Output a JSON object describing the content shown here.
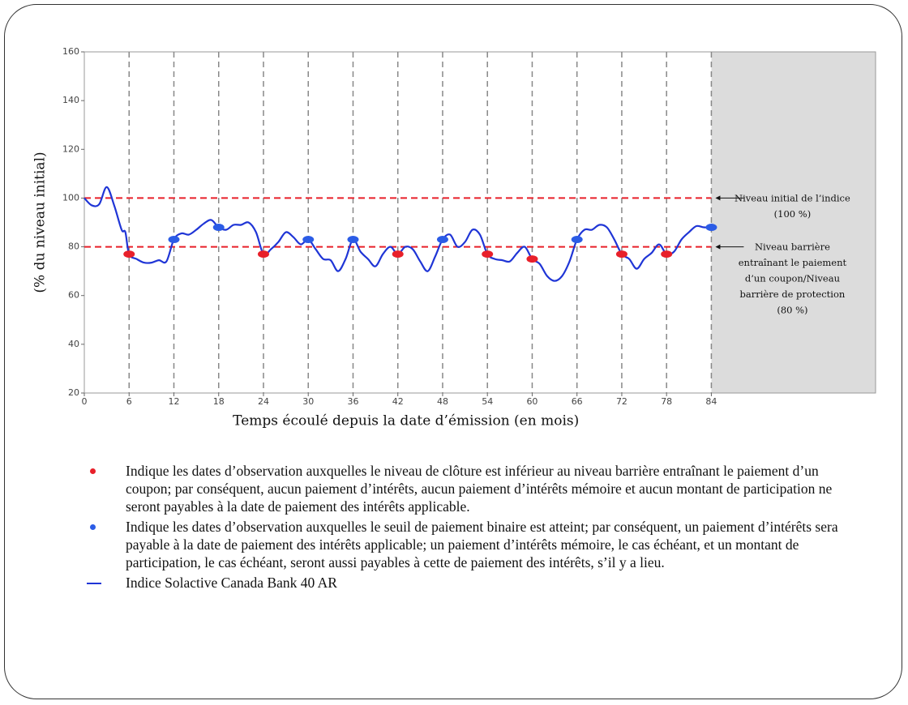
{
  "chart_data": {
    "type": "line",
    "xlabel": "Temps écoulé depuis la date d’émission (en mois)",
    "ylabel": "(% du niveau initial)",
    "xlim": [
      0,
      106
    ],
    "ylim": [
      20,
      160
    ],
    "xticks": [
      0,
      6,
      12,
      18,
      24,
      30,
      36,
      42,
      48,
      54,
      60,
      66,
      72,
      78,
      84
    ],
    "yticks": [
      20,
      40,
      60,
      80,
      100,
      120,
      140,
      160
    ],
    "observation_grid": true,
    "shaded_from": 84,
    "shade_color": "#dcdcdc",
    "x": [
      0,
      1,
      2,
      3,
      4,
      5,
      5.5,
      6,
      7,
      8,
      9,
      10,
      11,
      12,
      13,
      14,
      15,
      16,
      17,
      18,
      19,
      20,
      21,
      22,
      23,
      24,
      25,
      26,
      27,
      28,
      29,
      30,
      31,
      32,
      33,
      34,
      35,
      36,
      37,
      38,
      39,
      40,
      41,
      42,
      43,
      44,
      45,
      46,
      47,
      48,
      49,
      50,
      51,
      52,
      53,
      54,
      55,
      56,
      57,
      58,
      59,
      60,
      61,
      62,
      63,
      64,
      65,
      66,
      67,
      68,
      69,
      70,
      71,
      72,
      73,
      74,
      75,
      76,
      77,
      78,
      79,
      80,
      81,
      82,
      83,
      84
    ],
    "series": [
      {
        "name": "Indice Solactive Canada Bank 40 AR",
        "color": "#1f35d6",
        "values": [
          100,
          97,
          97.5,
          104.5,
          97,
          87,
          86,
          77,
          75,
          73.5,
          73.5,
          74.5,
          74,
          83,
          85.5,
          85,
          87,
          89.5,
          91,
          88,
          87,
          89,
          89,
          90,
          86,
          77,
          79,
          82,
          86,
          84,
          81,
          83,
          79,
          75,
          74.5,
          70,
          75,
          83,
          78,
          75,
          72,
          77,
          80,
          77,
          80,
          79,
          74,
          70,
          76,
          83,
          85,
          80,
          82,
          87,
          85,
          77,
          75,
          74.5,
          74,
          77.5,
          80,
          75,
          73,
          68,
          66,
          68,
          74,
          83,
          87,
          87,
          89,
          88,
          83,
          77,
          75,
          71,
          75,
          77.5,
          81,
          77,
          78,
          83,
          86,
          88.5,
          88,
          88
        ]
      }
    ],
    "reference_lines": [
      {
        "value": 100,
        "color": "#e8202a",
        "label": [
          "Niveau initial de l’indice",
          "(100 %)"
        ]
      },
      {
        "value": 80,
        "color": "#e8202a",
        "label": [
          "Niveau barrière",
          "entraînant le paiement",
          "d’un coupon/Niveau",
          "barrière de protection",
          "(80 %)"
        ]
      }
    ],
    "observations": [
      {
        "color": "#e8202a",
        "x": [
          6,
          24,
          42,
          54,
          60,
          72,
          78
        ],
        "values": [
          77,
          77,
          77,
          77,
          75,
          77,
          77
        ],
        "note": "Indique les dates d’observation auxquelles le niveau de clôture est inférieur au niveau barrière entraînant le paiement d’un coupon; par conséquent, aucun paiement d’intérêts, aucun paiement d’intérêts mémoire et aucun montant de participation ne seront payables à la date de paiement des intérêts applicable."
      },
      {
        "color": "#2b5ce6",
        "x": [
          12,
          18,
          30,
          36,
          48,
          66,
          84
        ],
        "values": [
          83,
          88,
          83,
          83,
          83,
          83,
          88
        ],
        "note": "Indique les dates d’observation auxquelles le seuil de paiement binaire est atteint; par conséquent, un paiement d’intérêts sera payable à la date de paiement des intérêts applicable; un paiement d’intérêts mémoire, le cas échéant, et un montant de participation, le cas échéant, seront aussi payables à cette de paiement des intérêts, s’il y a lieu."
      }
    ]
  }
}
